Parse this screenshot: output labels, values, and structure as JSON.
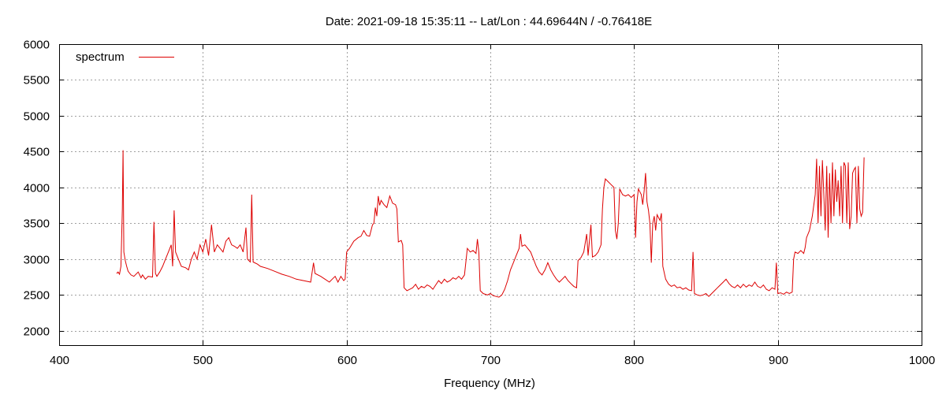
{
  "chart_data": {
    "type": "line",
    "title": "Date: 2021-09-18 15:35:11  --  Lat/Lon : 44.69644N / -0.76418E",
    "xlabel": "Frequency (MHz)",
    "ylabel": "",
    "xlim": [
      400,
      1000
    ],
    "ylim": [
      1800,
      6000
    ],
    "xticks": [
      400,
      500,
      600,
      700,
      800,
      900,
      1000
    ],
    "yticks": [
      2000,
      2500,
      3000,
      3500,
      4000,
      4500,
      5000,
      5500,
      6000
    ],
    "grid": true,
    "legend_position": "top-left",
    "series": [
      {
        "name": "spectrum",
        "color": "#dd0000",
        "points": [
          [
            440,
            2800
          ],
          [
            441,
            2820
          ],
          [
            442,
            2790
          ],
          [
            443,
            2900
          ],
          [
            444,
            3700
          ],
          [
            444.5,
            4520
          ],
          [
            445,
            3100
          ],
          [
            446,
            2980
          ],
          [
            447,
            2900
          ],
          [
            448,
            2830
          ],
          [
            450,
            2780
          ],
          [
            452,
            2760
          ],
          [
            455,
            2820
          ],
          [
            457,
            2740
          ],
          [
            458,
            2780
          ],
          [
            460,
            2720
          ],
          [
            462,
            2760
          ],
          [
            465,
            2750
          ],
          [
            466,
            3520
          ],
          [
            467,
            2800
          ],
          [
            468,
            2760
          ],
          [
            470,
            2820
          ],
          [
            472,
            2900
          ],
          [
            474,
            3000
          ],
          [
            476,
            3100
          ],
          [
            478,
            3200
          ],
          [
            479,
            2900
          ],
          [
            480,
            3680
          ],
          [
            481,
            3100
          ],
          [
            483,
            3000
          ],
          [
            485,
            2900
          ],
          [
            488,
            2880
          ],
          [
            490,
            2850
          ],
          [
            492,
            3000
          ],
          [
            494,
            3100
          ],
          [
            496,
            3000
          ],
          [
            498,
            3200
          ],
          [
            500,
            3100
          ],
          [
            502,
            3280
          ],
          [
            504,
            3050
          ],
          [
            506,
            3480
          ],
          [
            508,
            3100
          ],
          [
            510,
            3200
          ],
          [
            512,
            3150
          ],
          [
            514,
            3100
          ],
          [
            516,
            3250
          ],
          [
            518,
            3300
          ],
          [
            520,
            3200
          ],
          [
            522,
            3180
          ],
          [
            524,
            3150
          ],
          [
            526,
            3200
          ],
          [
            528,
            3100
          ],
          [
            530,
            3440
          ],
          [
            531,
            3000
          ],
          [
            533,
            2960
          ],
          [
            534,
            3900
          ],
          [
            535,
            2960
          ],
          [
            538,
            2930
          ],
          [
            540,
            2900
          ],
          [
            545,
            2870
          ],
          [
            550,
            2830
          ],
          [
            555,
            2790
          ],
          [
            560,
            2760
          ],
          [
            565,
            2720
          ],
          [
            570,
            2700
          ],
          [
            575,
            2680
          ],
          [
            577,
            2950
          ],
          [
            578,
            2800
          ],
          [
            582,
            2760
          ],
          [
            585,
            2720
          ],
          [
            588,
            2680
          ],
          [
            590,
            2720
          ],
          [
            592,
            2760
          ],
          [
            594,
            2680
          ],
          [
            596,
            2760
          ],
          [
            598,
            2700
          ],
          [
            599,
            2720
          ],
          [
            600,
            3100
          ],
          [
            602,
            3150
          ],
          [
            605,
            3250
          ],
          [
            608,
            3300
          ],
          [
            610,
            3320
          ],
          [
            612,
            3400
          ],
          [
            614,
            3330
          ],
          [
            616,
            3320
          ],
          [
            618,
            3480
          ],
          [
            619,
            3500
          ],
          [
            620,
            3720
          ],
          [
            621,
            3600
          ],
          [
            622,
            3880
          ],
          [
            623,
            3750
          ],
          [
            624,
            3820
          ],
          [
            626,
            3760
          ],
          [
            628,
            3720
          ],
          [
            630,
            3880
          ],
          [
            632,
            3780
          ],
          [
            634,
            3760
          ],
          [
            635,
            3700
          ],
          [
            636,
            3240
          ],
          [
            638,
            3260
          ],
          [
            639,
            3200
          ],
          [
            640,
            2600
          ],
          [
            642,
            2560
          ],
          [
            644,
            2580
          ],
          [
            646,
            2600
          ],
          [
            648,
            2650
          ],
          [
            650,
            2580
          ],
          [
            652,
            2620
          ],
          [
            654,
            2600
          ],
          [
            656,
            2640
          ],
          [
            658,
            2620
          ],
          [
            660,
            2580
          ],
          [
            662,
            2640
          ],
          [
            664,
            2700
          ],
          [
            666,
            2660
          ],
          [
            668,
            2720
          ],
          [
            670,
            2680
          ],
          [
            672,
            2700
          ],
          [
            674,
            2740
          ],
          [
            676,
            2720
          ],
          [
            678,
            2760
          ],
          [
            680,
            2720
          ],
          [
            682,
            2780
          ],
          [
            684,
            3150
          ],
          [
            686,
            3100
          ],
          [
            688,
            3120
          ],
          [
            690,
            3080
          ],
          [
            691,
            3280
          ],
          [
            692,
            3100
          ],
          [
            693,
            2560
          ],
          [
            695,
            2520
          ],
          [
            698,
            2500
          ],
          [
            700,
            2520
          ],
          [
            702,
            2490
          ],
          [
            704,
            2480
          ],
          [
            706,
            2470
          ],
          [
            708,
            2500
          ],
          [
            710,
            2580
          ],
          [
            712,
            2700
          ],
          [
            714,
            2850
          ],
          [
            716,
            2950
          ],
          [
            718,
            3050
          ],
          [
            720,
            3150
          ],
          [
            721,
            3350
          ],
          [
            722,
            3180
          ],
          [
            724,
            3200
          ],
          [
            726,
            3150
          ],
          [
            728,
            3100
          ],
          [
            730,
            3000
          ],
          [
            732,
            2900
          ],
          [
            734,
            2820
          ],
          [
            736,
            2780
          ],
          [
            738,
            2850
          ],
          [
            740,
            2950
          ],
          [
            742,
            2850
          ],
          [
            744,
            2780
          ],
          [
            746,
            2720
          ],
          [
            748,
            2680
          ],
          [
            750,
            2720
          ],
          [
            752,
            2760
          ],
          [
            754,
            2700
          ],
          [
            756,
            2660
          ],
          [
            758,
            2620
          ],
          [
            760,
            2600
          ],
          [
            761,
            2980
          ],
          [
            763,
            3020
          ],
          [
            765,
            3100
          ],
          [
            767,
            3350
          ],
          [
            768,
            3050
          ],
          [
            770,
            3480
          ],
          [
            771,
            3030
          ],
          [
            773,
            3050
          ],
          [
            775,
            3100
          ],
          [
            777,
            3200
          ],
          [
            778,
            3700
          ],
          [
            779,
            4000
          ],
          [
            780,
            4120
          ],
          [
            782,
            4080
          ],
          [
            784,
            4040
          ],
          [
            786,
            4000
          ],
          [
            787,
            3400
          ],
          [
            788,
            3280
          ],
          [
            789,
            3500
          ],
          [
            790,
            3980
          ],
          [
            792,
            3900
          ],
          [
            794,
            3880
          ],
          [
            796,
            3900
          ],
          [
            798,
            3860
          ],
          [
            800,
            3900
          ],
          [
            801,
            3300
          ],
          [
            802,
            3800
          ],
          [
            803,
            3980
          ],
          [
            805,
            3900
          ],
          [
            806,
            3760
          ],
          [
            807,
            3950
          ],
          [
            808,
            4200
          ],
          [
            809,
            3800
          ],
          [
            810,
            3680
          ],
          [
            811,
            3500
          ],
          [
            812,
            2950
          ],
          [
            813,
            3500
          ],
          [
            814,
            3600
          ],
          [
            815,
            3400
          ],
          [
            816,
            3620
          ],
          [
            818,
            3540
          ],
          [
            819,
            3640
          ],
          [
            820,
            2900
          ],
          [
            822,
            2720
          ],
          [
            824,
            2650
          ],
          [
            826,
            2620
          ],
          [
            828,
            2640
          ],
          [
            830,
            2600
          ],
          [
            832,
            2610
          ],
          [
            834,
            2580
          ],
          [
            836,
            2600
          ],
          [
            838,
            2570
          ],
          [
            840,
            2560
          ],
          [
            841,
            3100
          ],
          [
            842,
            2520
          ],
          [
            844,
            2500
          ],
          [
            846,
            2490
          ],
          [
            848,
            2500
          ],
          [
            850,
            2520
          ],
          [
            852,
            2480
          ],
          [
            854,
            2520
          ],
          [
            856,
            2560
          ],
          [
            858,
            2600
          ],
          [
            860,
            2640
          ],
          [
            862,
            2680
          ],
          [
            864,
            2720
          ],
          [
            866,
            2660
          ],
          [
            868,
            2620
          ],
          [
            870,
            2600
          ],
          [
            872,
            2640
          ],
          [
            874,
            2600
          ],
          [
            876,
            2650
          ],
          [
            878,
            2610
          ],
          [
            880,
            2640
          ],
          [
            882,
            2620
          ],
          [
            884,
            2680
          ],
          [
            886,
            2620
          ],
          [
            888,
            2600
          ],
          [
            890,
            2640
          ],
          [
            892,
            2580
          ],
          [
            894,
            2560
          ],
          [
            896,
            2600
          ],
          [
            898,
            2580
          ],
          [
            899,
            2950
          ],
          [
            900,
            2520
          ],
          [
            902,
            2530
          ],
          [
            904,
            2510
          ],
          [
            906,
            2540
          ],
          [
            908,
            2520
          ],
          [
            910,
            2540
          ],
          [
            911,
            3000
          ],
          [
            912,
            3100
          ],
          [
            914,
            3080
          ],
          [
            916,
            3120
          ],
          [
            918,
            3080
          ],
          [
            919,
            3160
          ],
          [
            920,
            3300
          ],
          [
            922,
            3400
          ],
          [
            924,
            3600
          ],
          [
            926,
            3900
          ],
          [
            927,
            4400
          ],
          [
            928,
            3500
          ],
          [
            929,
            4300
          ],
          [
            930,
            3600
          ],
          [
            931,
            4380
          ],
          [
            932,
            3900
          ],
          [
            933,
            3400
          ],
          [
            934,
            4300
          ],
          [
            935,
            3300
          ],
          [
            936,
            4200
          ],
          [
            937,
            3500
          ],
          [
            938,
            4350
          ],
          [
            939,
            3600
          ],
          [
            940,
            4250
          ],
          [
            941,
            3800
          ],
          [
            942,
            4100
          ],
          [
            943,
            3600
          ],
          [
            944,
            4300
          ],
          [
            945,
            3500
          ],
          [
            946,
            4350
          ],
          [
            947,
            4300
          ],
          [
            948,
            3500
          ],
          [
            949,
            4350
          ],
          [
            950,
            3420
          ],
          [
            951,
            3600
          ],
          [
            952,
            4200
          ],
          [
            953,
            4250
          ],
          [
            954,
            4280
          ],
          [
            955,
            3500
          ],
          [
            956,
            4300
          ],
          [
            957,
            3700
          ],
          [
            958,
            3600
          ],
          [
            959,
            3650
          ],
          [
            960,
            4420
          ]
        ]
      }
    ]
  }
}
